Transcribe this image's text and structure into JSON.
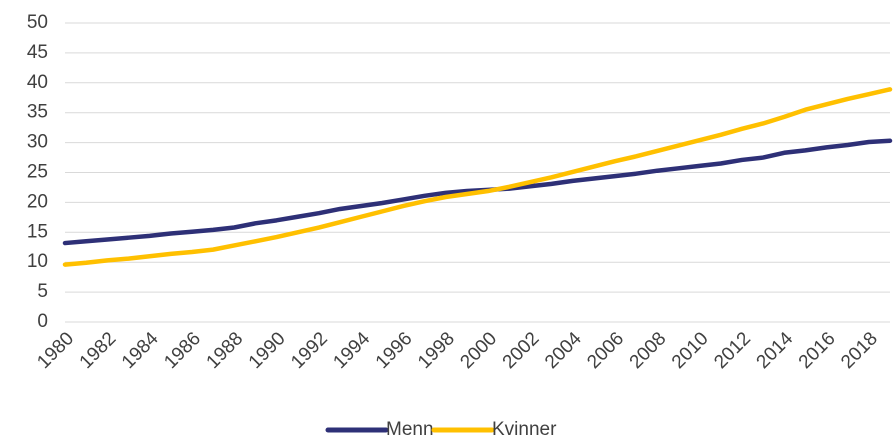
{
  "chart_data": {
    "type": "line",
    "x": [
      1980,
      1981,
      1982,
      1983,
      1984,
      1985,
      1986,
      1987,
      1988,
      1989,
      1990,
      1991,
      1992,
      1993,
      1994,
      1995,
      1996,
      1997,
      1998,
      1999,
      2000,
      2001,
      2002,
      2003,
      2004,
      2005,
      2006,
      2007,
      2008,
      2009,
      2010,
      2011,
      2012,
      2013,
      2014,
      2015,
      2016,
      2017,
      2018,
      2019
    ],
    "series": [
      {
        "name": "Menn",
        "color": "#2e3077",
        "values": [
          13.2,
          13.5,
          13.8,
          14.1,
          14.4,
          14.8,
          15.1,
          15.4,
          15.8,
          16.5,
          17.0,
          17.6,
          18.2,
          18.9,
          19.4,
          19.9,
          20.5,
          21.1,
          21.6,
          21.9,
          22.1,
          22.3,
          22.7,
          23.1,
          23.6,
          24.0,
          24.4,
          24.8,
          25.3,
          25.7,
          26.1,
          26.5,
          27.1,
          27.5,
          28.3,
          28.7,
          29.2,
          29.6,
          30.1,
          30.3
        ]
      },
      {
        "name": "Kvinner",
        "color": "#ffc000",
        "values": [
          9.6,
          9.9,
          10.3,
          10.6,
          11.0,
          11.4,
          11.7,
          12.1,
          12.8,
          13.5,
          14.2,
          15.0,
          15.8,
          16.7,
          17.6,
          18.5,
          19.4,
          20.2,
          20.9,
          21.4,
          21.9,
          22.6,
          23.4,
          24.2,
          25.1,
          26.0,
          26.9,
          27.7,
          28.6,
          29.5,
          30.4,
          31.3,
          32.3,
          33.2,
          34.3,
          35.5,
          36.4,
          37.3,
          38.1,
          38.9
        ]
      }
    ],
    "xlim": [
      1980,
      2019
    ],
    "xticks": [
      1980,
      1982,
      1984,
      1986,
      1988,
      1990,
      1992,
      1994,
      1996,
      1998,
      2000,
      2002,
      2004,
      2006,
      2008,
      2010,
      2012,
      2014,
      2016,
      2018
    ],
    "ylim": [
      0,
      50
    ],
    "yticks": [
      0,
      5,
      10,
      15,
      20,
      25,
      30,
      35,
      40,
      45,
      50
    ],
    "grid": true,
    "legend": "bottom"
  }
}
